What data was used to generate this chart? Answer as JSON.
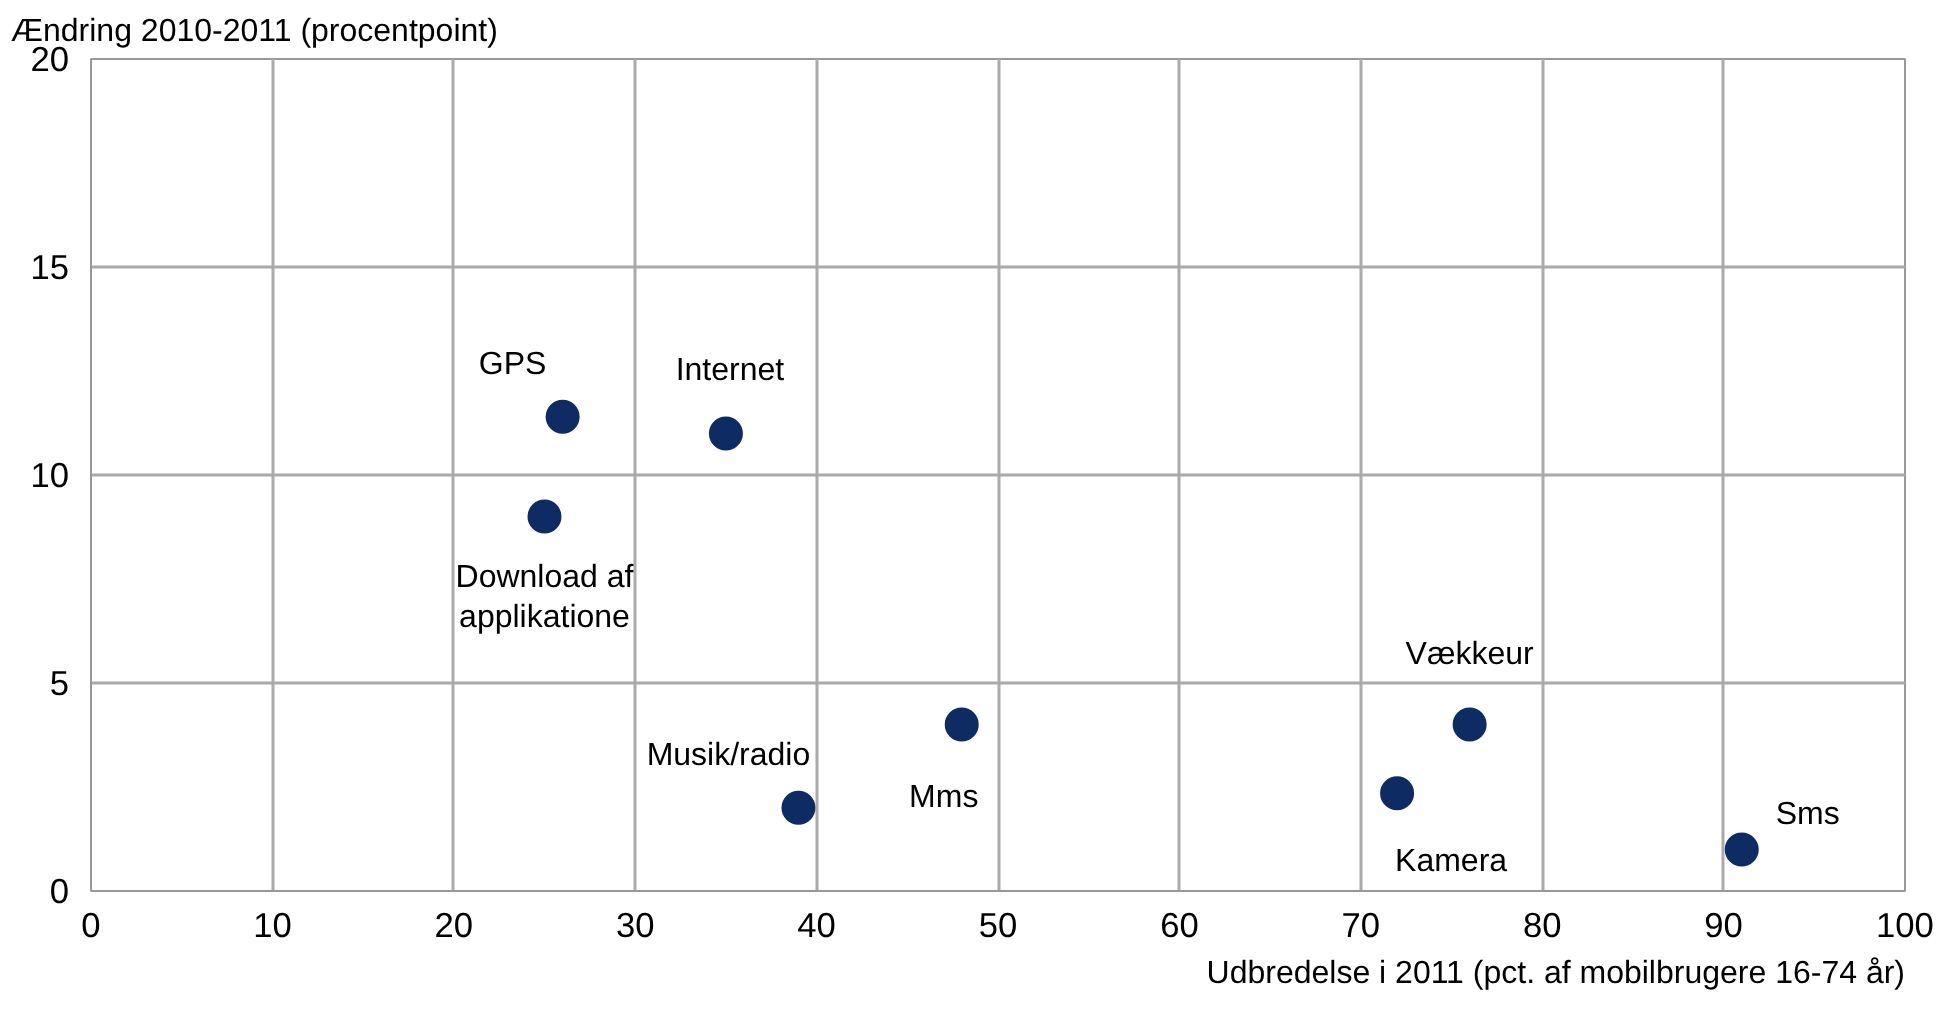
{
  "chart_data": {
    "type": "scatter",
    "xlabel": "Udbredelse i 2011 (pct. af mobilbrugere 16-74 år)",
    "ylabel": "Ændring 2010-2011 (procentpoint)",
    "series": [
      {
        "color": "#0f2b63",
        "x": [
          26,
          35,
          25,
          39,
          48,
          72,
          76,
          91
        ],
        "values": [
          11.4,
          11.0,
          9.0,
          2.0,
          4.0,
          2.35,
          4.0,
          1.0
        ]
      }
    ],
    "xlim": [
      0,
      100
    ],
    "xticks": [
      0,
      10,
      20,
      30,
      40,
      50,
      60,
      70,
      80,
      90,
      100
    ],
    "ylim": [
      0,
      20
    ],
    "yticks": [
      0,
      5,
      10,
      15,
      20
    ],
    "grid": true,
    "marker": "circle",
    "annotations": [
      {
        "text": "GPS",
        "x": 26,
        "y": 11.4
      },
      {
        "text": "Internet",
        "x": 35,
        "y": 11.0
      },
      {
        "text": "Download af\napplikatione",
        "x": 25,
        "y": 9.0
      },
      {
        "text": "Musik/radio",
        "x": 39,
        "y": 2.0
      },
      {
        "text": "Mms",
        "x": 48,
        "y": 4.0
      },
      {
        "text": "Kamera",
        "x": 72,
        "y": 2.35
      },
      {
        "text": "Vækkeur",
        "x": 76,
        "y": 4.0
      },
      {
        "text": "Sms",
        "x": 91,
        "y": 1.0
      }
    ]
  }
}
